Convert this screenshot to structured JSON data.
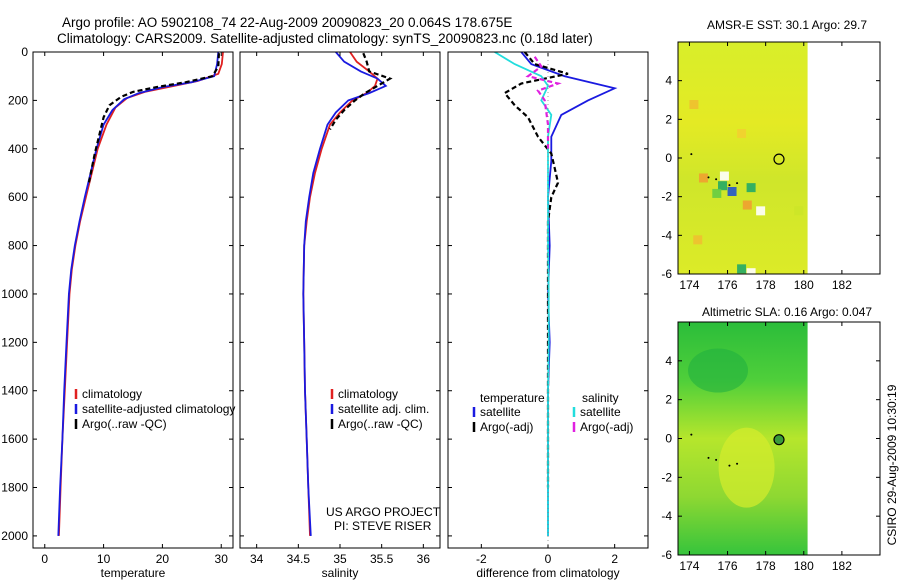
{
  "header": {
    "line1": "Argo profile: AO 5902108_74 22-Aug-2009 20090823_20 0.064S 178.675E",
    "line2": "Climatology: CARS2009. Satellite-adjusted climatology: synTS_20090823.nc (0.18d later)"
  },
  "side_stamp": "CSIRO 29-Aug-2009 10:30:19",
  "colors": {
    "climatology": "#e02020",
    "satellite": "#1a1ae0",
    "argo": "#000000",
    "cyan": "#22dddd",
    "magenta": "#e020e0"
  },
  "notes": {
    "project": "US ARGO PROJECT",
    "pi": "PI: STEVE RISER"
  },
  "chart_data": [
    {
      "id": "temperature",
      "type": "line",
      "xlabel": "temperature",
      "xlim": [
        -2,
        32
      ],
      "ylim": [
        0,
        2050
      ],
      "y_reversed": true,
      "xticks": [
        0,
        10,
        20,
        30
      ],
      "yticks": [
        0,
        200,
        400,
        600,
        800,
        1000,
        1200,
        1400,
        1600,
        1800,
        2000
      ],
      "legend": [
        "climatology",
        "satellite-adjusted climatology",
        "Argo(..raw -QC)"
      ],
      "series": [
        {
          "name": "climatology",
          "color": "#e02020",
          "dashed": false,
          "points": [
            [
              30.3,
              0
            ],
            [
              30.1,
              50
            ],
            [
              29.5,
              90
            ],
            [
              26,
              120
            ],
            [
              22,
              140
            ],
            [
              17,
              165
            ],
            [
              14,
              190
            ],
            [
              12,
              230
            ],
            [
              10.5,
              300
            ],
            [
              9,
              400
            ],
            [
              8,
              500
            ],
            [
              7,
              600
            ],
            [
              6,
              700
            ],
            [
              5.2,
              800
            ],
            [
              4.6,
              900
            ],
            [
              4.2,
              1000
            ],
            [
              3.8,
              1200
            ],
            [
              3.4,
              1400
            ],
            [
              3,
              1600
            ],
            [
              2.7,
              1800
            ],
            [
              2.4,
              2000
            ]
          ]
        },
        {
          "name": "satellite-adjusted climatology",
          "color": "#1a1ae0",
          "dashed": false,
          "points": [
            [
              29.5,
              0
            ],
            [
              29.3,
              50
            ],
            [
              28.8,
              100
            ],
            [
              25,
              125
            ],
            [
              20,
              145
            ],
            [
              16,
              170
            ],
            [
              13.5,
              195
            ],
            [
              11.5,
              240
            ],
            [
              10,
              300
            ],
            [
              8.8,
              400
            ],
            [
              7.8,
              500
            ],
            [
              6.8,
              600
            ],
            [
              5.9,
              700
            ],
            [
              5.1,
              800
            ],
            [
              4.5,
              900
            ],
            [
              4.1,
              1000
            ],
            [
              3.7,
              1200
            ],
            [
              3.3,
              1400
            ],
            [
              3,
              1600
            ],
            [
              2.6,
              1800
            ],
            [
              2.3,
              2000
            ]
          ]
        },
        {
          "name": "Argo(..raw -QC)",
          "color": "#000000",
          "dashed": true,
          "points": [
            [
              29.6,
              5
            ],
            [
              29.5,
              60
            ],
            [
              28.5,
              100
            ],
            [
              24,
              125
            ],
            [
              19,
              145
            ],
            [
              15,
              165
            ],
            [
              13,
              185
            ],
            [
              11,
              220
            ],
            [
              10,
              270
            ],
            [
              9.2,
              350
            ],
            [
              8.5,
              420
            ],
            [
              8,
              480
            ],
            [
              7.5,
              540
            ]
          ]
        }
      ]
    },
    {
      "id": "salinity",
      "type": "line",
      "xlabel": "salinity",
      "xlim": [
        33.8,
        36.2
      ],
      "ylim": [
        0,
        2050
      ],
      "y_reversed": true,
      "xticks": [
        34,
        34.5,
        35,
        35.5,
        36
      ],
      "legend": [
        "climatology",
        "satellite adj. clim.",
        "Argo(..raw -QC)"
      ],
      "series": [
        {
          "name": "climatology",
          "color": "#e02020",
          "dashed": false,
          "points": [
            [
              35.12,
              0
            ],
            [
              35.2,
              40
            ],
            [
              35.35,
              80
            ],
            [
              35.45,
              110
            ],
            [
              35.42,
              140
            ],
            [
              35.32,
              170
            ],
            [
              35.15,
              200
            ],
            [
              35,
              250
            ],
            [
              34.88,
              300
            ],
            [
              34.78,
              400
            ],
            [
              34.7,
              500
            ],
            [
              34.64,
              600
            ],
            [
              34.6,
              700
            ],
            [
              34.57,
              800
            ],
            [
              34.56,
              1000
            ],
            [
              34.57,
              1200
            ],
            [
              34.58,
              1400
            ],
            [
              34.6,
              1600
            ],
            [
              34.62,
              1800
            ],
            [
              34.64,
              2000
            ]
          ]
        },
        {
          "name": "satellite adj. clim.",
          "color": "#1a1ae0",
          "dashed": false,
          "points": [
            [
              34.95,
              0
            ],
            [
              35.05,
              40
            ],
            [
              35.25,
              80
            ],
            [
              35.45,
              110
            ],
            [
              35.55,
              140
            ],
            [
              35.35,
              170
            ],
            [
              35.1,
              200
            ],
            [
              34.95,
              250
            ],
            [
              34.85,
              300
            ],
            [
              34.76,
              400
            ],
            [
              34.68,
              500
            ],
            [
              34.63,
              600
            ],
            [
              34.59,
              700
            ],
            [
              34.57,
              800
            ],
            [
              34.56,
              1000
            ],
            [
              34.57,
              1200
            ],
            [
              34.58,
              1400
            ],
            [
              34.6,
              1600
            ],
            [
              34.62,
              1800
            ],
            [
              34.65,
              2000
            ]
          ]
        },
        {
          "name": "Argo(..raw -QC)",
          "color": "#000000",
          "dashed": true,
          "points": [
            [
              35.28,
              5
            ],
            [
              35.32,
              40
            ],
            [
              35.35,
              80
            ],
            [
              35.6,
              110
            ],
            [
              35.45,
              140
            ],
            [
              35.3,
              170
            ],
            [
              35.18,
              200
            ],
            [
              35.05,
              240
            ],
            [
              34.95,
              280
            ],
            [
              34.88,
              320
            ]
          ]
        }
      ]
    },
    {
      "id": "difference",
      "type": "line",
      "xlabel": "difference from climatology",
      "xlim": [
        -3,
        3
      ],
      "ylim": [
        0,
        2050
      ],
      "y_reversed": true,
      "xticks": [
        -2,
        0,
        2
      ],
      "legend_groups": {
        "temperature": [
          "satellite",
          "Argo(-adj)"
        ],
        "salinity": [
          "satellite",
          "Argo(-adj)"
        ]
      },
      "series": [
        {
          "name": "temperature satellite",
          "color": "#1a1ae0",
          "dashed": false,
          "points": [
            [
              -0.8,
              0
            ],
            [
              -0.5,
              50
            ],
            [
              0.5,
              100
            ],
            [
              2,
              150
            ],
            [
              1.2,
              200
            ],
            [
              0.4,
              260
            ],
            [
              0.1,
              350
            ],
            [
              0.1,
              450
            ],
            [
              0,
              600
            ],
            [
              0.05,
              800
            ],
            [
              0,
              1000
            ],
            [
              0.05,
              1200
            ],
            [
              0,
              1400
            ],
            [
              0,
              1600
            ],
            [
              0,
              1800
            ],
            [
              0,
              2000
            ]
          ]
        },
        {
          "name": "temperature Argo(-adj)",
          "color": "#000000",
          "dashed": true,
          "points": [
            [
              -0.7,
              0
            ],
            [
              -0.4,
              50
            ],
            [
              0.6,
              90
            ],
            [
              -0.8,
              130
            ],
            [
              -1.3,
              170
            ],
            [
              -1,
              220
            ],
            [
              -0.6,
              270
            ],
            [
              -0.3,
              350
            ],
            [
              0.1,
              420
            ],
            [
              0.2,
              480
            ],
            [
              0.3,
              540
            ],
            [
              0.1,
              600
            ],
            [
              0,
              700
            ],
            [
              0,
              900
            ],
            [
              0,
              1200
            ],
            [
              0,
              1500
            ],
            [
              0,
              1800
            ]
          ]
        },
        {
          "name": "salinity satellite",
          "color": "#22dddd",
          "dashed": false,
          "points": [
            [
              -1.6,
              0
            ],
            [
              -1,
              50
            ],
            [
              -0.2,
              100
            ],
            [
              0,
              140
            ],
            [
              -0.2,
              200
            ],
            [
              0.1,
              260
            ],
            [
              0,
              350
            ],
            [
              0,
              450
            ],
            [
              0,
              600
            ],
            [
              0,
              800
            ],
            [
              0.02,
              1000
            ],
            [
              0.02,
              1200
            ],
            [
              0,
              1400
            ],
            [
              0,
              1600
            ],
            [
              0,
              1800
            ],
            [
              0,
              2000
            ]
          ]
        },
        {
          "name": "salinity Argo(-adj)",
          "color": "#e020e0",
          "dashed": true,
          "points": [
            [
              -0.4,
              20
            ],
            [
              -0.2,
              60
            ],
            [
              -0.6,
              100
            ],
            [
              0.3,
              130
            ],
            [
              -0.3,
              160
            ],
            [
              -0.1,
              200
            ],
            [
              0,
              300
            ],
            [
              0,
              400
            ]
          ]
        }
      ]
    },
    {
      "id": "sst_map",
      "type": "heatmap",
      "title": "AMSR-E SST: 30.1 Argo: 29.7",
      "xlim": [
        173.4,
        184
      ],
      "ylim": [
        -6,
        6
      ],
      "xticks": [
        174,
        176,
        178,
        180,
        182
      ],
      "yticks": [
        -6,
        -4,
        -2,
        0,
        2,
        4
      ],
      "data_xmax": 180.2,
      "marker": [
        178.7,
        -0.06
      ]
    },
    {
      "id": "sla_map",
      "type": "heatmap",
      "title": "Altimetric SLA: 0.16 Argo: 0.047",
      "xlim": [
        173.4,
        184
      ],
      "ylim": [
        -6,
        6
      ],
      "xticks": [
        174,
        176,
        178,
        180,
        182
      ],
      "yticks": [
        -6,
        -4,
        -2,
        0,
        2,
        4
      ],
      "data_xmax": 180.2,
      "marker": [
        178.7,
        -0.06
      ]
    }
  ]
}
